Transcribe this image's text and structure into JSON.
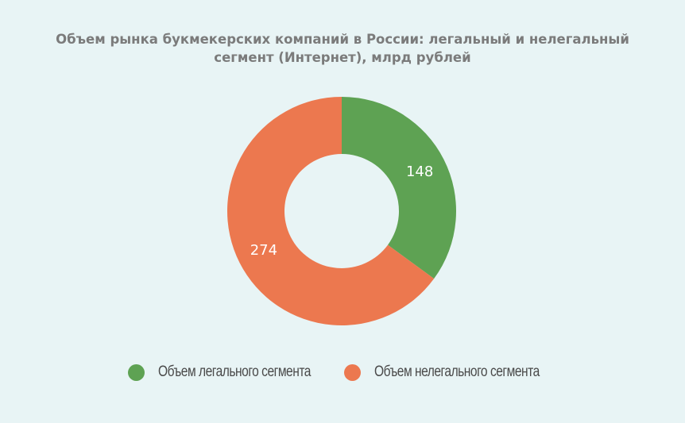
{
  "title_lines": [
    "Объем рынка букмекерских компаний в России: легальный и нелегальный",
    "сегмент (Интернет), млрд рублей"
  ],
  "chart_data": {
    "type": "pie",
    "donut": true,
    "title": "Объем рынка букмекерских компаний в России: легальный и нелегальный сегмент (Интернет), млрд рублей",
    "categories": [
      "Объем легального сегмента",
      "Объем нелегального сегмента"
    ],
    "values": [
      148,
      274
    ],
    "colors": [
      "#5ea253",
      "#ec784f"
    ],
    "data_labels": [
      "148",
      "274"
    ],
    "legend_position": "bottom"
  },
  "colors": {
    "background": "#e8f4f5",
    "title": "#7b7b7b",
    "legal": "#5ea253",
    "illegal": "#ec784f"
  }
}
